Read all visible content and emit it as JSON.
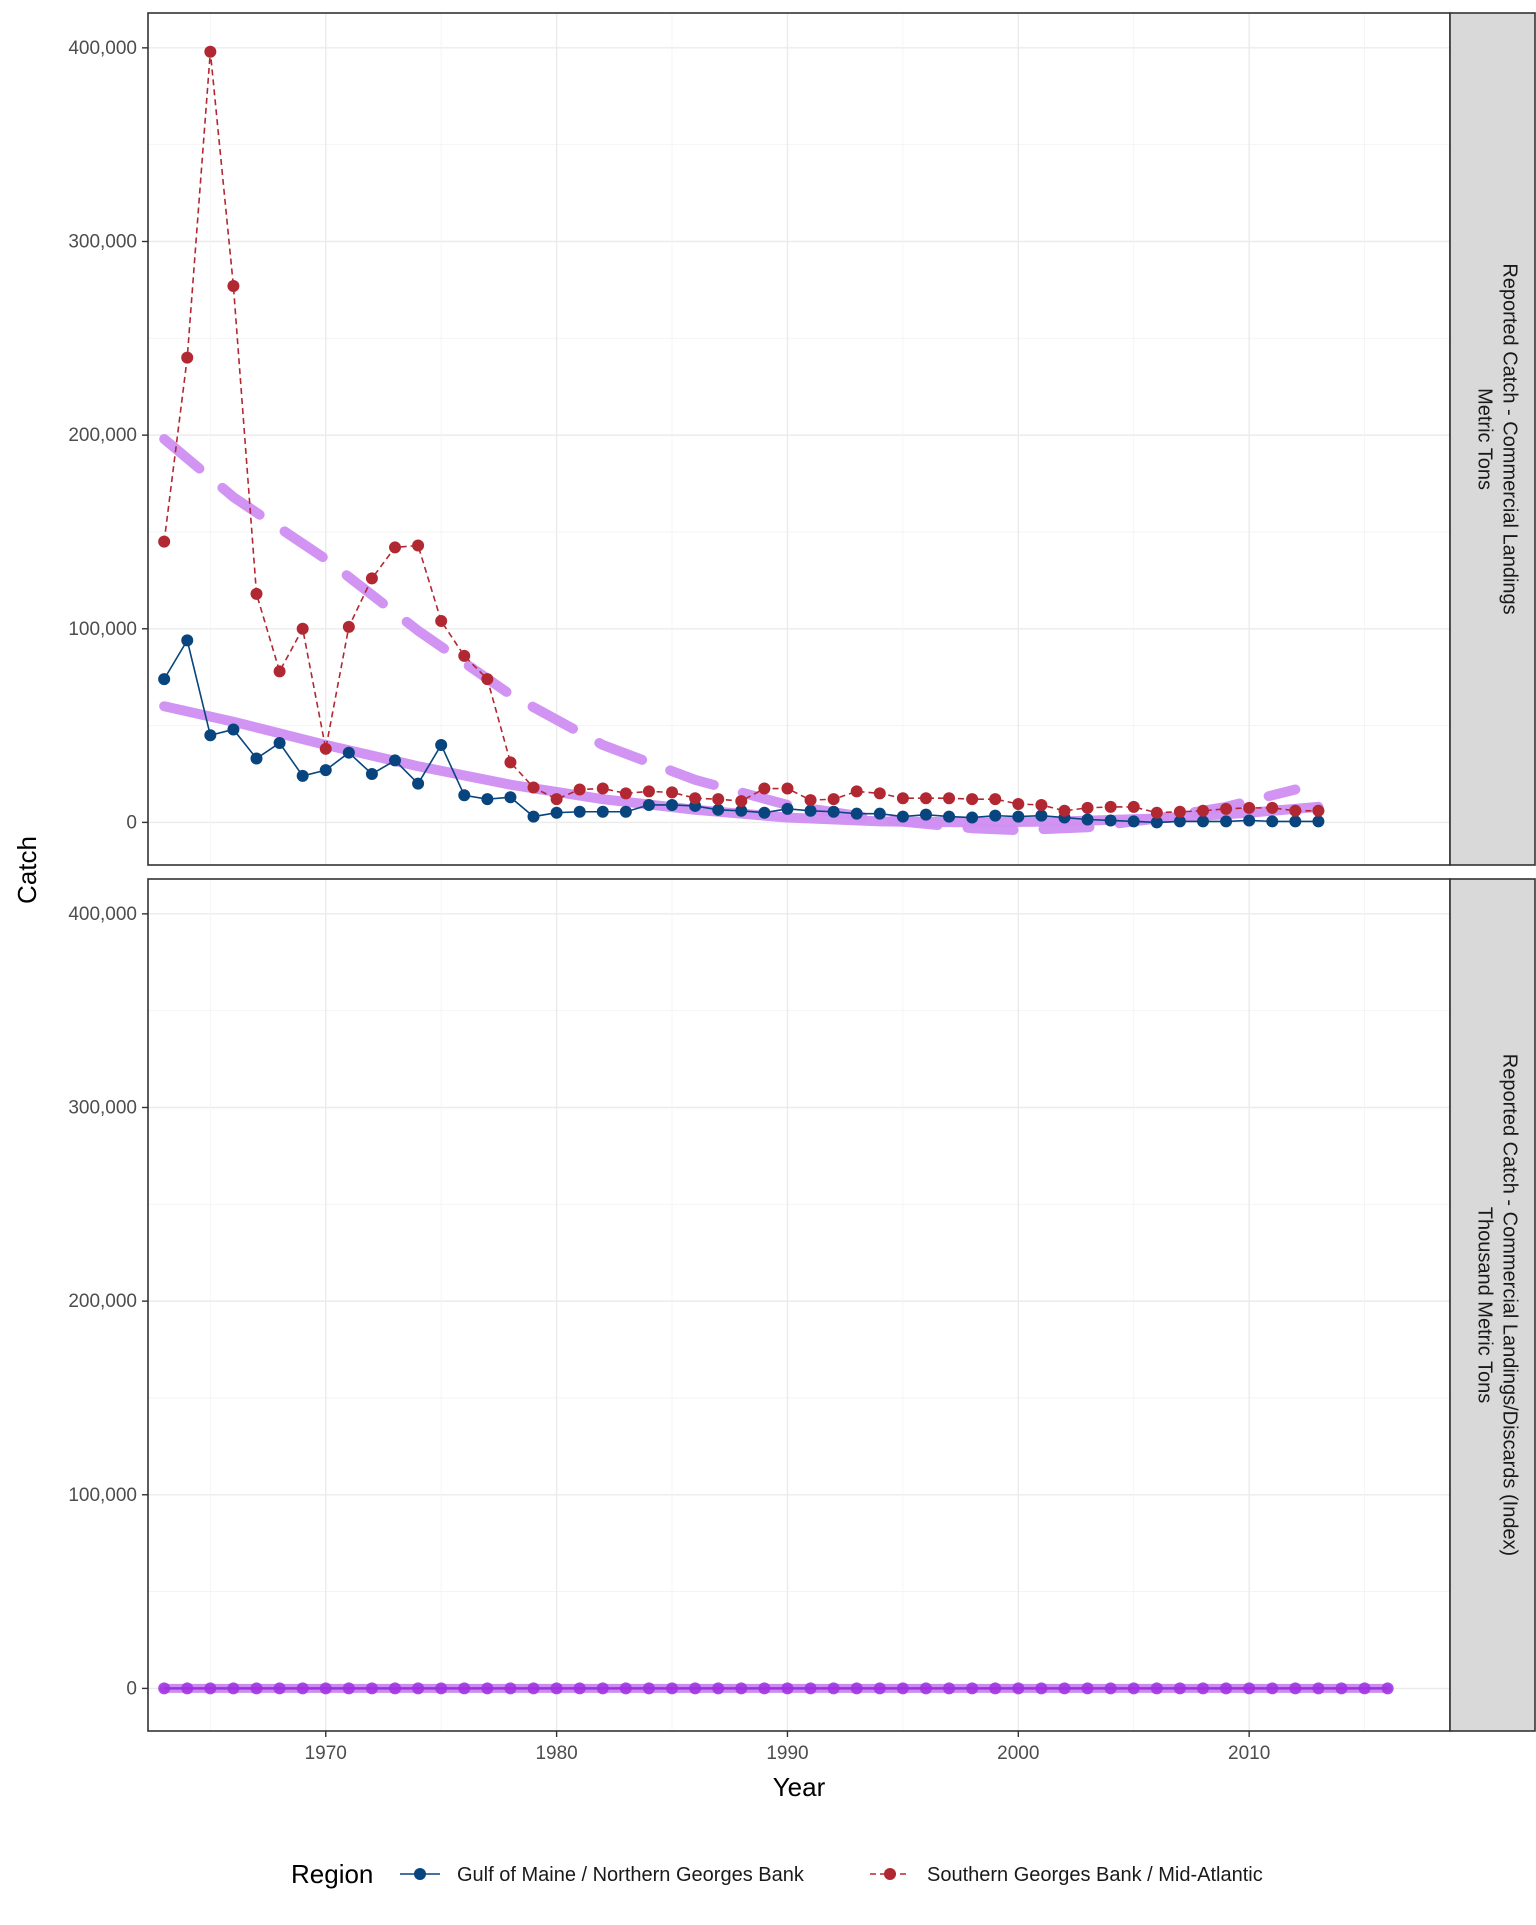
{
  "chart_data": {
    "type": "line",
    "xlabel": "Year",
    "ylabel": "Catch",
    "xlim": [
      1962.3,
      2018.7
    ],
    "ylim": [
      -22000,
      418000
    ],
    "x_ticks": [
      "1970",
      "1980",
      "1990",
      "2000",
      "2010"
    ],
    "y_ticks": [
      "0",
      "100,000",
      "200,000",
      "300,000",
      "400,000"
    ],
    "grid": true,
    "legend_position": "bottom",
    "legend_title": "Region",
    "series_styles": {
      "gom": {
        "color": "#08457e",
        "dash": "solid"
      },
      "sgb": {
        "color": "#b22832",
        "dash": "dashed"
      },
      "trend": {
        "color": "#cf8ef2"
      },
      "index": {
        "color": "#9f30e0"
      }
    },
    "panels": [
      {
        "strip": [
          "Reported Catch - Commercial Landings",
          "Metric Tons"
        ],
        "series": [
          {
            "name": "Gulf of Maine / Northern Georges Bank",
            "style": "gom",
            "x": [
              1963,
              1964,
              1965,
              1966,
              1967,
              1968,
              1969,
              1970,
              1971,
              1972,
              1973,
              1974,
              1975,
              1976,
              1977,
              1978,
              1979,
              1980,
              1981,
              1982,
              1983,
              1984,
              1985,
              1986,
              1987,
              1988,
              1989,
              1990,
              1991,
              1992,
              1993,
              1994,
              1995,
              1996,
              1997,
              1998,
              1999,
              2000,
              2001,
              2002,
              2003,
              2004,
              2005,
              2006,
              2007,
              2008,
              2009,
              2010,
              2011,
              2012,
              2013
            ],
            "y": [
              74000,
              94000,
              45000,
              48000,
              33000,
              41000,
              24000,
              27000,
              36000,
              25000,
              32000,
              20000,
              40000,
              14000,
              12000,
              13000,
              3000,
              5000,
              5500,
              5500,
              5500,
              9000,
              9000,
              8500,
              6500,
              6000,
              5000,
              7000,
              6000,
              5500,
              4500,
              4500,
              3000,
              4000,
              3000,
              2500,
              3500,
              3000,
              3500,
              2500,
              1500,
              1000,
              500,
              0,
              500,
              500,
              500,
              1000,
              500,
              500,
              500
            ]
          },
          {
            "name": "Southern Georges Bank / Mid-Atlantic",
            "style": "sgb",
            "x": [
              1963,
              1964,
              1965,
              1966,
              1967,
              1968,
              1969,
              1970,
              1971,
              1972,
              1973,
              1974,
              1975,
              1976,
              1977,
              1978,
              1979,
              1980,
              1981,
              1982,
              1983,
              1984,
              1985,
              1986,
              1987,
              1988,
              1989,
              1990,
              1991,
              1992,
              1993,
              1994,
              1995,
              1996,
              1997,
              1998,
              1999,
              2000,
              2001,
              2002,
              2003,
              2004,
              2005,
              2006,
              2007,
              2008,
              2009,
              2010,
              2011,
              2012,
              2013
            ],
            "y": [
              145000,
              240000,
              398000,
              277000,
              118000,
              78000,
              100000,
              38000,
              101000,
              126000,
              142000,
              143000,
              104000,
              86000,
              74000,
              31000,
              18000,
              12000,
              17000,
              17500,
              15000,
              16000,
              15500,
              12500,
              12000,
              11000,
              17500,
              17500,
              11500,
              12000,
              16000,
              15000,
              12500,
              12500,
              12500,
              12000,
              12000,
              9500,
              9000,
              6000,
              7500,
              8000,
              8000,
              5000,
              5500,
              6000,
              7000,
              7500,
              7500,
              6000,
              6000
            ]
          }
        ],
        "trends": [
          {
            "style": "trend",
            "dash": "solid",
            "x": [
              1963,
              1966,
              1970,
              1974,
              1978,
              1982,
              1986,
              1990,
              1994,
              1998,
              2002,
              2006,
              2010,
              2013
            ],
            "y": [
              60000,
              52000,
              40000,
              29000,
              19500,
              12000,
              6500,
              2500,
              500,
              0,
              500,
              2000,
              5000,
              8000
            ]
          },
          {
            "style": "trend",
            "dash": "dashed",
            "x": [
              1963,
              1966,
              1970,
              1974,
              1978,
              1982,
              1986,
              1990,
              1994,
              1998,
              2000,
              2003,
              2006,
              2009,
              2012
            ],
            "y": [
              198000,
              168000,
              136000,
              99000,
              66000,
              40000,
              22000,
              9000,
              1500,
              -3000,
              -4000,
              -2500,
              2000,
              8000,
              17000
            ]
          }
        ]
      },
      {
        "strip": [
          "Reported Catch - Commercial Landings/Discards (Index)",
          "Thousand Metric Tons"
        ],
        "series": [
          {
            "name": "Index",
            "style": "index",
            "x_range": [
              1963,
              2016
            ],
            "y_const": 0
          }
        ],
        "trends": [
          {
            "style": "index",
            "dash": "solid",
            "x": [
              1963,
              2016
            ],
            "y": [
              0,
              0
            ]
          }
        ]
      }
    ],
    "legend": [
      {
        "label": "Gulf of Maine / Northern Georges Bank",
        "style": "gom"
      },
      {
        "label": "Southern Georges Bank / Mid-Atlantic",
        "style": "sgb"
      }
    ]
  }
}
